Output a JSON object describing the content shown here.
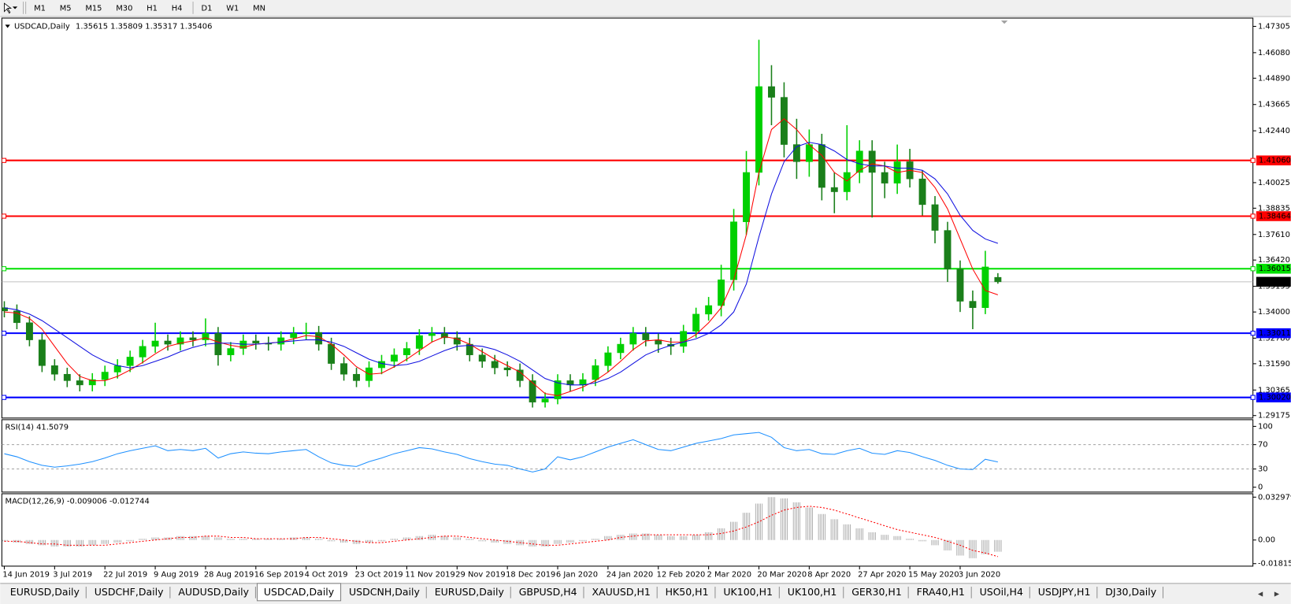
{
  "toolbar": {
    "periods": [
      "M1",
      "M5",
      "M15",
      "M30",
      "H1",
      "H4",
      "D1",
      "W1",
      "MN"
    ]
  },
  "chart_data": [
    {
      "type": "candlestick",
      "title": "USDCAD,Daily",
      "quote": [
        1.35615,
        1.35809,
        1.35317,
        1.35406
      ],
      "categories": [
        "14 Jun 2019",
        null,
        null,
        null,
        "3 Jul 2019",
        null,
        null,
        null,
        "22 Jul 2019",
        null,
        null,
        null,
        "9 Aug 2019",
        null,
        null,
        null,
        "28 Aug 2019",
        null,
        null,
        null,
        "16 Sep 2019",
        null,
        null,
        null,
        "4 Oct 2019",
        null,
        null,
        null,
        "23 Oct 2019",
        null,
        null,
        null,
        "11 Nov 2019",
        null,
        null,
        null,
        "29 Nov 2019",
        null,
        null,
        null,
        "18 Dec 2019",
        null,
        null,
        null,
        "6 Jan 2020",
        null,
        null,
        null,
        "24 Jan 2020",
        null,
        null,
        null,
        "12 Feb 2020",
        null,
        null,
        null,
        "2 Mar 2020",
        null,
        null,
        null,
        "20 Mar 2020",
        null,
        null,
        null,
        "8 Apr 2020",
        null,
        null,
        null,
        "27 Apr 2020",
        null,
        null,
        null,
        "15 May 2020",
        null,
        null,
        null,
        "3 Jun 2020",
        null,
        null,
        null
      ],
      "open": [
        1.342,
        1.3405,
        1.335,
        1.327,
        1.315,
        1.311,
        1.308,
        1.306,
        1.3085,
        1.312,
        1.315,
        1.319,
        1.324,
        1.3265,
        1.325,
        1.328,
        1.327,
        1.33,
        1.32,
        1.323,
        1.3265,
        1.3255,
        1.325,
        1.328,
        1.33,
        1.3305,
        1.325,
        1.316,
        1.311,
        1.308,
        1.314,
        1.317,
        1.32,
        1.323,
        1.329,
        1.33,
        1.328,
        1.325,
        1.32,
        1.317,
        1.314,
        1.313,
        1.308,
        1.298,
        1.2995,
        1.308,
        1.306,
        1.3085,
        1.315,
        1.321,
        1.325,
        1.33,
        1.327,
        1.325,
        1.324,
        1.331,
        1.339,
        1.343,
        1.355,
        1.382,
        1.405,
        1.445,
        1.44,
        1.418,
        1.41,
        1.418,
        1.398,
        1.396,
        1.405,
        1.415,
        1.405,
        1.4,
        1.41,
        1.402,
        1.39,
        1.378,
        1.36,
        1.345,
        1.342,
        1.35615
      ],
      "high": [
        1.345,
        1.3435,
        1.338,
        1.33,
        1.318,
        1.314,
        1.311,
        1.3115,
        1.315,
        1.318,
        1.322,
        1.327,
        1.335,
        1.3295,
        1.331,
        1.331,
        1.337,
        1.333,
        1.326,
        1.3295,
        1.3295,
        1.3285,
        1.331,
        1.333,
        1.335,
        1.3335,
        1.328,
        1.319,
        1.314,
        1.317,
        1.32,
        1.323,
        1.326,
        1.332,
        1.333,
        1.333,
        1.331,
        1.328,
        1.323,
        1.32,
        1.317,
        1.316,
        1.311,
        1.3025,
        1.311,
        1.311,
        1.3115,
        1.318,
        1.324,
        1.328,
        1.333,
        1.333,
        1.33,
        1.328,
        1.334,
        1.342,
        1.347,
        1.362,
        1.388,
        1.415,
        1.4668,
        1.455,
        1.447,
        1.43,
        1.425,
        1.423,
        1.405,
        1.427,
        1.42,
        1.42,
        1.41,
        1.418,
        1.416,
        1.406,
        1.394,
        1.382,
        1.364,
        1.35,
        1.3685,
        1.35809
      ],
      "low": [
        1.3375,
        1.332,
        1.324,
        1.312,
        1.308,
        1.305,
        1.303,
        1.303,
        1.3055,
        1.309,
        1.312,
        1.316,
        1.321,
        1.322,
        1.322,
        1.324,
        1.324,
        1.315,
        1.317,
        1.32,
        1.3225,
        1.322,
        1.322,
        1.325,
        1.327,
        1.322,
        1.313,
        1.308,
        1.305,
        1.305,
        1.311,
        1.314,
        1.317,
        1.32,
        1.326,
        1.325,
        1.322,
        1.317,
        1.314,
        1.311,
        1.31,
        1.305,
        1.2955,
        1.2955,
        1.297,
        1.303,
        1.303,
        1.3055,
        1.312,
        1.318,
        1.322,
        1.324,
        1.321,
        1.32,
        1.321,
        1.328,
        1.336,
        1.338,
        1.35,
        1.376,
        1.399,
        1.427,
        1.412,
        1.402,
        1.403,
        1.392,
        1.386,
        1.392,
        1.4,
        1.384,
        1.393,
        1.395,
        1.398,
        1.385,
        1.372,
        1.354,
        1.34,
        1.332,
        1.339,
        1.35317
      ],
      "close": [
        1.3405,
        1.335,
        1.327,
        1.315,
        1.311,
        1.308,
        1.306,
        1.3085,
        1.312,
        1.315,
        1.319,
        1.324,
        1.3265,
        1.325,
        1.328,
        1.327,
        1.33,
        1.32,
        1.323,
        1.3265,
        1.3255,
        1.325,
        1.328,
        1.33,
        1.3305,
        1.325,
        1.316,
        1.311,
        1.308,
        1.314,
        1.317,
        1.32,
        1.323,
        1.329,
        1.33,
        1.328,
        1.325,
        1.32,
        1.317,
        1.314,
        1.313,
        1.308,
        1.298,
        1.2995,
        1.308,
        1.306,
        1.3085,
        1.315,
        1.321,
        1.325,
        1.33,
        1.327,
        1.325,
        1.324,
        1.331,
        1.339,
        1.343,
        1.355,
        1.382,
        1.405,
        1.445,
        1.44,
        1.418,
        1.41,
        1.418,
        1.398,
        1.396,
        1.405,
        1.415,
        1.405,
        1.4,
        1.41,
        1.402,
        1.39,
        1.378,
        1.36,
        1.345,
        1.342,
        1.361,
        1.35406
      ],
      "bull_color": "#00d000",
      "bear_color": "#1a7f1a",
      "moving_averages": [
        {
          "color": "#ff0000",
          "values": [
            1.34,
            1.3395,
            1.337,
            1.332,
            1.324,
            1.316,
            1.31,
            1.308,
            1.308,
            1.31,
            1.313,
            1.3165,
            1.3205,
            1.324,
            1.3255,
            1.3265,
            1.328,
            1.326,
            1.3245,
            1.3235,
            1.325,
            1.3255,
            1.326,
            1.3275,
            1.329,
            1.3285,
            1.325,
            1.32,
            1.3145,
            1.311,
            1.3115,
            1.3145,
            1.318,
            1.322,
            1.326,
            1.3285,
            1.3275,
            1.325,
            1.3215,
            1.318,
            1.315,
            1.312,
            1.307,
            1.302,
            1.301,
            1.303,
            1.305,
            1.308,
            1.312,
            1.317,
            1.3225,
            1.3265,
            1.327,
            1.326,
            1.326,
            1.3295,
            1.335,
            1.342,
            1.355,
            1.376,
            1.405,
            1.425,
            1.43,
            1.425,
            1.418,
            1.413,
            1.405,
            1.401,
            1.406,
            1.409,
            1.408,
            1.405,
            1.406,
            1.405,
            1.398,
            1.388,
            1.374,
            1.36,
            1.35,
            1.348
          ]
        },
        {
          "color": "#1010e0",
          "values": [
            1.342,
            1.341,
            1.339,
            1.336,
            1.332,
            1.328,
            1.324,
            1.32,
            1.317,
            1.315,
            1.314,
            1.315,
            1.317,
            1.319,
            1.3215,
            1.3235,
            1.325,
            1.3255,
            1.3255,
            1.325,
            1.325,
            1.3255,
            1.326,
            1.3265,
            1.327,
            1.327,
            1.326,
            1.324,
            1.321,
            1.318,
            1.316,
            1.315,
            1.3155,
            1.317,
            1.3195,
            1.322,
            1.324,
            1.3245,
            1.324,
            1.3225,
            1.32,
            1.317,
            1.313,
            1.309,
            1.307,
            1.306,
            1.306,
            1.307,
            1.309,
            1.312,
            1.316,
            1.32,
            1.3225,
            1.3245,
            1.326,
            1.3275,
            1.33,
            1.334,
            1.34,
            1.353,
            1.375,
            1.395,
            1.41,
            1.417,
            1.419,
            1.418,
            1.415,
            1.411,
            1.409,
            1.408,
            1.408,
            1.407,
            1.407,
            1.406,
            1.402,
            1.395,
            1.385,
            1.378,
            1.374,
            1.372
          ]
        }
      ],
      "levels": [
        {
          "value": 1.4106,
          "label": "1.41060",
          "color": "#ff0000"
        },
        {
          "value": 1.38464,
          "label": "1.38464",
          "color": "#ff0000"
        },
        {
          "value": 1.36015,
          "label": "1.36015",
          "color": "#00e000"
        },
        {
          "value": 1.33011,
          "label": "1.33011",
          "color": "#0000ff"
        },
        {
          "value": 1.3002,
          "label": "1.30020",
          "color": "#0000ff"
        }
      ],
      "last_price": 1.35406,
      "ylim": [
        1.2906,
        1.4769
      ],
      "yticks": [
        1.47305,
        {
          "value": 1.4608,
          "label": "1.46080"
        },
        {
          "value": 1.4489,
          "label": "1.44890"
        },
        1.43665,
        {
          "value": 1.4244,
          "label": "1.42440"
        },
        1.40025,
        1.38835,
        {
          "value": 1.3761,
          "label": "1.37610"
        },
        {
          "value": 1.3642,
          "label": "1.36420"
        },
        1.35195,
        {
          "value": 1.34,
          "label": "1.34000"
        },
        {
          "value": 1.3278,
          "label": "1.32780"
        },
        {
          "value": 1.3159,
          "label": "1.31590"
        },
        1.30365,
        1.29175
      ]
    },
    {
      "type": "line",
      "title": "RSI(14)",
      "reading": 41.5079,
      "color": "#1e90ff",
      "values": [
        55,
        50,
        42,
        36,
        33,
        35,
        38,
        42,
        48,
        55,
        60,
        64,
        68,
        60,
        62,
        60,
        64,
        48,
        55,
        58,
        56,
        55,
        58,
        60,
        62,
        50,
        40,
        36,
        34,
        42,
        48,
        55,
        60,
        65,
        63,
        58,
        54,
        47,
        42,
        38,
        36,
        30,
        25,
        30,
        50,
        45,
        50,
        58,
        66,
        72,
        78,
        70,
        62,
        60,
        66,
        72,
        76,
        80,
        86,
        88,
        90,
        82,
        65,
        60,
        62,
        55,
        54,
        60,
        64,
        56,
        54,
        60,
        57,
        50,
        44,
        36,
        30,
        29,
        46,
        41.5079
      ],
      "ylim": [
        -8,
        111
      ],
      "yticks": [
        100,
        70,
        30,
        0
      ]
    },
    {
      "type": "macd",
      "title": "MACD(12,26,9)",
      "readings": [
        -0.009006,
        -0.012744
      ],
      "histogram_color": "#a0a0a0",
      "signal_color": "#ff0000",
      "histogram": [
        -0.001,
        -0.002,
        -0.003,
        -0.004,
        -0.005,
        -0.005,
        -0.005,
        -0.004,
        -0.003,
        -0.002,
        -0.001,
        0.001,
        0.002,
        0.002,
        0.003,
        0.003,
        0.003,
        0.002,
        0.001,
        0.001,
        0.001,
        0.001,
        0.001,
        0.002,
        0.002,
        0.001,
        -0.001,
        -0.002,
        -0.003,
        -0.002,
        -0.001,
        0.001,
        0.002,
        0.003,
        0.004,
        0.003,
        0.002,
        0.001,
        -0.001,
        -0.002,
        -0.003,
        -0.004,
        -0.005,
        -0.005,
        -0.003,
        -0.002,
        -0.001,
        0.001,
        0.003,
        0.004,
        0.005,
        0.005,
        0.004,
        0.003,
        0.003,
        0.004,
        0.006,
        0.009,
        0.014,
        0.021,
        0.028,
        0.033,
        0.032,
        0.029,
        0.025,
        0.02,
        0.016,
        0.012,
        0.009,
        0.006,
        0.004,
        0.003,
        0.001,
        -0.001,
        -0.004,
        -0.008,
        -0.012,
        -0.014,
        -0.011,
        -0.009006
      ],
      "signal": [
        -0.001,
        -0.001,
        -0.002,
        -0.003,
        -0.003,
        -0.004,
        -0.004,
        -0.004,
        -0.004,
        -0.003,
        -0.002,
        -0.001,
        0,
        0.001,
        0.002,
        0.002,
        0.003,
        0.003,
        0.002,
        0.002,
        0.001,
        0.001,
        0.001,
        0.001,
        0.002,
        0.002,
        0.001,
        0,
        -0.001,
        -0.002,
        -0.002,
        -0.001,
        0,
        0.001,
        0.002,
        0.003,
        0.003,
        0.002,
        0.001,
        0,
        -0.001,
        -0.002,
        -0.003,
        -0.004,
        -0.004,
        -0.003,
        -0.002,
        -0.001,
        0,
        0.002,
        0.003,
        0.004,
        0.004,
        0.004,
        0.004,
        0.004,
        0.004,
        0.005,
        0.007,
        0.01,
        0.014,
        0.019,
        0.023,
        0.025,
        0.026,
        0.025,
        0.023,
        0.02,
        0.017,
        0.014,
        0.011,
        0.008,
        0.006,
        0.004,
        0.002,
        -0.001,
        -0.004,
        -0.008,
        -0.01,
        -0.012744
      ],
      "ylim": [
        -0.0201,
        0.0356
      ],
      "yticks": [
        0.032979,
        {
          "value": 0,
          "label": "0.00"
        },
        -0.018154
      ]
    }
  ],
  "tabs": [
    {
      "label": "EURUSD,Daily",
      "active": false
    },
    {
      "label": "USDCHF,Daily",
      "active": false
    },
    {
      "label": "AUDUSD,Daily",
      "active": false
    },
    {
      "label": "USDCAD,Daily",
      "active": true
    },
    {
      "label": "USDCNH,Daily",
      "active": false
    },
    {
      "label": "EURUSD,Daily",
      "active": false
    },
    {
      "label": "GBPUSD,H4",
      "active": false
    },
    {
      "label": "XAUUSD,H1",
      "active": false
    },
    {
      "label": "HK50,H1",
      "active": false
    },
    {
      "label": "UK100,H1",
      "active": false
    },
    {
      "label": "UK100,H1",
      "active": false
    },
    {
      "label": "GER30,H1",
      "active": false
    },
    {
      "label": "FRA40,H1",
      "active": false
    },
    {
      "label": "USOil,H4",
      "active": false
    },
    {
      "label": "USDJPY,H1",
      "active": false
    },
    {
      "label": "DJ30,Daily",
      "active": false
    }
  ]
}
